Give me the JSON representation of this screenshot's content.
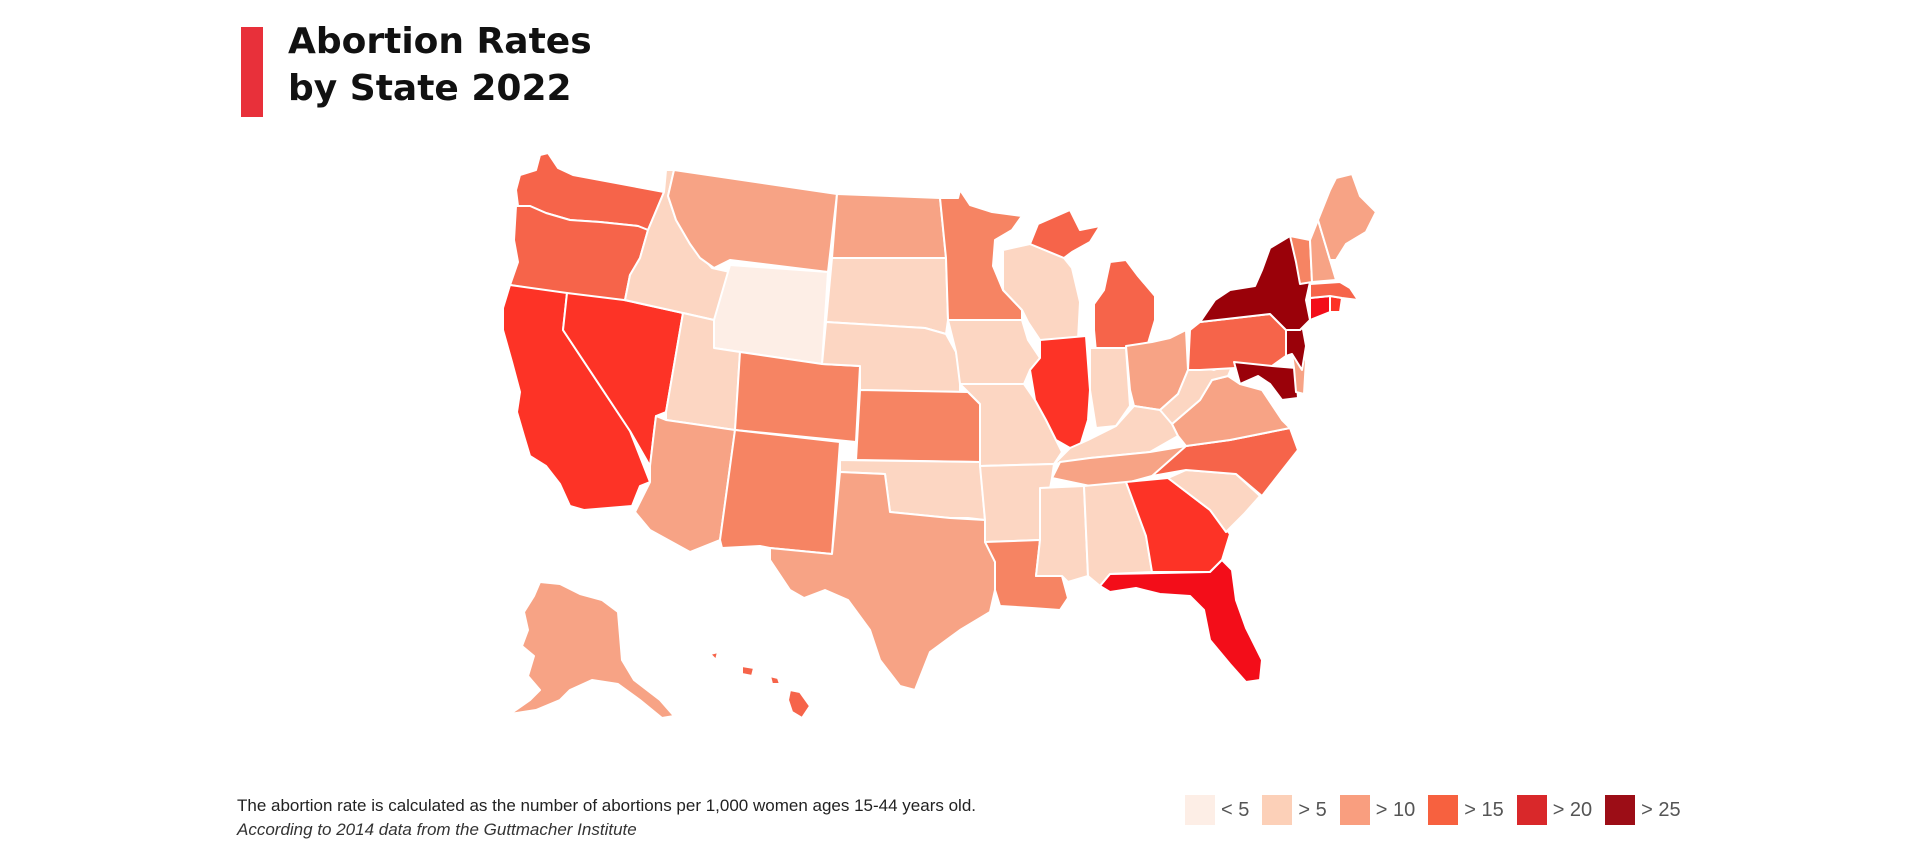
{
  "title_line1": "Abortion Rates",
  "title_line2": "by State 2022",
  "footnote": "The abortion rate is calculated as the number of abortions per 1,000 women ages 15-44 years old.",
  "source": "According to 2014 data from the Guttmacher Institute",
  "legend": [
    {
      "label": "< 5",
      "color": "#fdeee6"
    },
    {
      "label": "> 5",
      "color": "#fcd0b8"
    },
    {
      "label": "> 10",
      "color": "#f99e7f"
    },
    {
      "label": "> 15",
      "color": "#f7613f"
    },
    {
      "label": "> 20",
      "color": "#d9282a"
    },
    {
      "label": "> 25",
      "color": "#9c0d16"
    }
  ],
  "map_colors": {
    "c0": "#fdeee6",
    "c1": "#fcd6c2",
    "c2": "#f7a385",
    "c3": "#f68463",
    "c4": "#f6644a",
    "c5": "#fd3326",
    "c6": "#f30d19",
    "c7": "#9a0109"
  },
  "state_classes": {
    "wa": "c4",
    "or": "c4",
    "ca": "c5",
    "nv": "c5",
    "id": "c1",
    "mt": "c2",
    "wy": "c0",
    "ut": "c1",
    "az": "c2",
    "co": "c3",
    "nm": "c3",
    "nd": "c2",
    "sd": "c1",
    "ne": "c1",
    "ks": "c3",
    "ok": "c1",
    "tx": "c2",
    "mn": "c3",
    "ia": "c1",
    "mo": "c1",
    "ar": "c1",
    "la": "c3",
    "wi": "c1",
    "il": "c5",
    "mi": "c4",
    "in": "c1",
    "oh": "c2",
    "ky": "c1",
    "tn": "c2",
    "ms": "c1",
    "al": "c1",
    "ga": "c5",
    "fl": "c6",
    "sc": "c1",
    "nc": "c4",
    "va": "c2",
    "wv": "c1",
    "pa": "c4",
    "ny": "c7",
    "nj": "c7",
    "md": "c7",
    "de": "c2",
    "ct": "c6",
    "ri": "c5",
    "ma": "c4",
    "vt": "c3",
    "nh": "c2",
    "me": "c2",
    "ak": "c2",
    "hi": "c4"
  }
}
